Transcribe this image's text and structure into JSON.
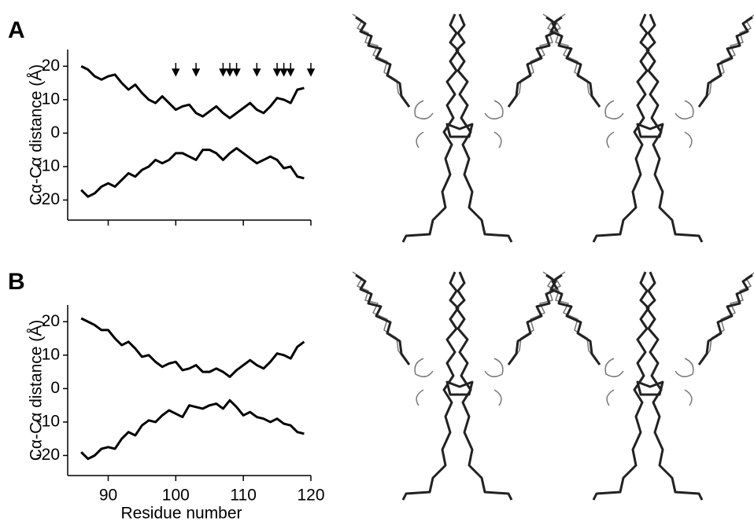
{
  "chart_data": [
    {
      "type": "line",
      "panel_label": "A",
      "ylabel": "Cα-Cα distance (Å)",
      "x": [
        86,
        87,
        88,
        89,
        90,
        91,
        92,
        93,
        94,
        95,
        96,
        97,
        98,
        99,
        100,
        101,
        102,
        103,
        104,
        105,
        106,
        107,
        108,
        109,
        110,
        111,
        112,
        113,
        114,
        115,
        116,
        117,
        118,
        119
      ],
      "series": [
        {
          "color": "#000000",
          "values": [
            20,
            19,
            17,
            16,
            17,
            17.5,
            15,
            13,
            14.5,
            12,
            10,
            9,
            11,
            9,
            7,
            8,
            8.5,
            6,
            5,
            6.5,
            8,
            6,
            4.5,
            6,
            7.5,
            9,
            7,
            6,
            8,
            10.5,
            10,
            9,
            13,
            13.5
          ]
        },
        {
          "color": "#000000",
          "values": [
            -17,
            -19,
            -18,
            -16,
            -15,
            -16,
            -14,
            -12,
            -13,
            -11,
            -10,
            -8,
            -9,
            -8,
            -6,
            -6,
            -7,
            -8,
            -5,
            -5,
            -6,
            -8,
            -6,
            -4.5,
            -6,
            -7.5,
            -9,
            -8,
            -7,
            -8,
            -10.5,
            -10,
            -13,
            -13.5
          ]
        }
      ],
      "arrows": [
        100,
        103,
        107,
        108,
        109,
        112,
        115,
        116,
        117,
        120
      ],
      "xlim": [
        84,
        120
      ],
      "ylim": [
        -26,
        25
      ],
      "xticks": [
        90,
        100,
        110,
        120
      ],
      "xtick_labels": false,
      "yticks": [
        -20,
        -10,
        0,
        10,
        20
      ]
    },
    {
      "type": "line",
      "panel_label": "B",
      "ylabel": "Cα-Cα distance (Å)",
      "xlabel": "Residue number",
      "x": [
        86,
        87,
        88,
        89,
        90,
        91,
        92,
        93,
        94,
        95,
        96,
        97,
        98,
        99,
        100,
        101,
        102,
        103,
        104,
        105,
        106,
        107,
        108,
        109,
        110,
        111,
        112,
        113,
        114,
        115,
        116,
        117,
        118,
        119
      ],
      "series": [
        {
          "color": "#000000",
          "values": [
            21,
            20,
            19,
            17.5,
            17.5,
            15,
            13,
            14,
            12,
            9.5,
            10,
            8,
            6.5,
            7.5,
            8,
            5.5,
            6,
            7,
            5,
            5,
            6,
            5,
            3.5,
            5.5,
            7,
            8.5,
            7,
            6,
            8,
            10.5,
            10,
            9,
            12.5,
            14
          ]
        },
        {
          "color": "#000000",
          "values": [
            -19,
            -21,
            -20,
            -18,
            -17.5,
            -18,
            -15,
            -13,
            -14,
            -11,
            -9.5,
            -10,
            -8,
            -6.5,
            -7.5,
            -8.5,
            -5,
            -5.5,
            -6,
            -5,
            -4.5,
            -6,
            -3.5,
            -5.5,
            -8,
            -7,
            -8.5,
            -9,
            -10,
            -9,
            -10.5,
            -11,
            -13,
            -13.5
          ]
        }
      ],
      "xlim": [
        84,
        120
      ],
      "ylim": [
        -26,
        25
      ],
      "xticks": [
        90,
        100,
        110,
        120
      ],
      "xtick_labels": true,
      "yticks": [
        -20,
        -10,
        0,
        10,
        20
      ]
    }
  ]
}
